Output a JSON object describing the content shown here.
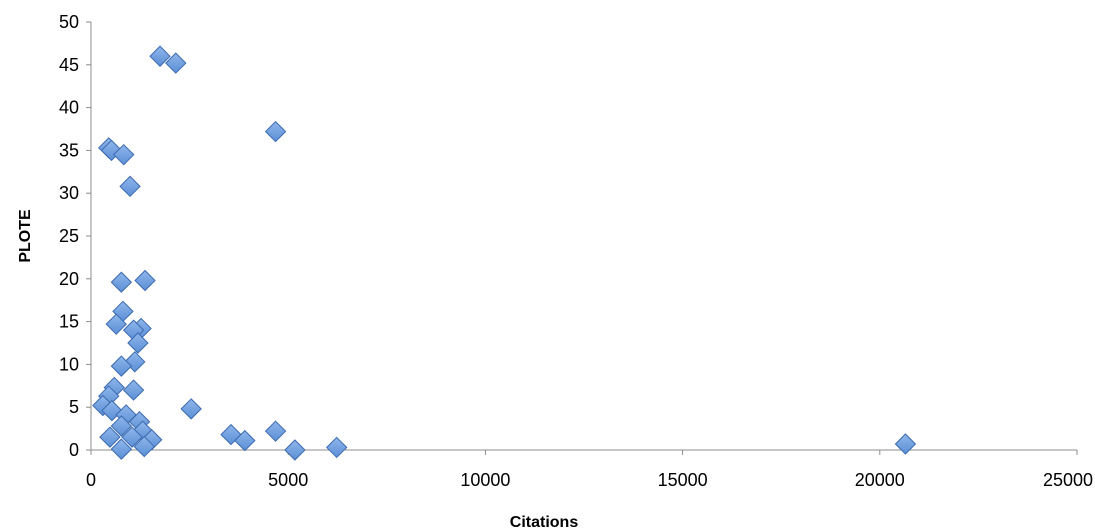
{
  "chart_data": {
    "type": "scatter",
    "title": "",
    "xlabel": "Citations",
    "ylabel": "PLOTE",
    "xlim": [
      0,
      25000
    ],
    "ylim": [
      0,
      50
    ],
    "xticks": [
      0,
      5000,
      10000,
      15000,
      20000,
      25000
    ],
    "yticks": [
      0,
      5,
      10,
      15,
      20,
      25,
      30,
      35,
      40,
      45,
      50
    ],
    "x_tick_labels": [
      "0",
      "5000",
      "10000",
      "15000",
      "20000",
      "25000"
    ],
    "y_tick_labels": [
      "0",
      "5",
      "10",
      "15",
      "20",
      "25",
      "30",
      "35",
      "40",
      "45",
      "50"
    ],
    "grid": false,
    "legend": "none",
    "marker": "diamond",
    "colors": {
      "marker_fill": "#5b8fd6",
      "marker_fill_light": "#8fb6ea",
      "marker_stroke": "#3c6ab0",
      "axis": "#8c8c8c"
    },
    "series": [
      {
        "points": [
          {
            "x": 1750,
            "y": 46.0
          },
          {
            "x": 2150,
            "y": 45.2
          },
          {
            "x": 4680,
            "y": 37.2
          },
          {
            "x": 450,
            "y": 35.3
          },
          {
            "x": 520,
            "y": 35.0
          },
          {
            "x": 830,
            "y": 34.5
          },
          {
            "x": 990,
            "y": 30.8
          },
          {
            "x": 770,
            "y": 19.6
          },
          {
            "x": 1370,
            "y": 19.8
          },
          {
            "x": 810,
            "y": 16.2
          },
          {
            "x": 640,
            "y": 14.7
          },
          {
            "x": 1270,
            "y": 14.2
          },
          {
            "x": 1080,
            "y": 14.0
          },
          {
            "x": 1190,
            "y": 12.5
          },
          {
            "x": 1110,
            "y": 10.3
          },
          {
            "x": 770,
            "y": 9.8
          },
          {
            "x": 590,
            "y": 7.3
          },
          {
            "x": 450,
            "y": 6.3
          },
          {
            "x": 1080,
            "y": 7.0
          },
          {
            "x": 300,
            "y": 5.2
          },
          {
            "x": 530,
            "y": 4.6
          },
          {
            "x": 890,
            "y": 4.1
          },
          {
            "x": 2540,
            "y": 4.8
          },
          {
            "x": 1230,
            "y": 3.3
          },
          {
            "x": 770,
            "y": 2.8
          },
          {
            "x": 1310,
            "y": 2.2
          },
          {
            "x": 4680,
            "y": 2.2
          },
          {
            "x": 480,
            "y": 1.5
          },
          {
            "x": 1040,
            "y": 1.5
          },
          {
            "x": 1540,
            "y": 1.2
          },
          {
            "x": 3550,
            "y": 1.8
          },
          {
            "x": 3900,
            "y": 1.1
          },
          {
            "x": 1350,
            "y": 0.4
          },
          {
            "x": 770,
            "y": 0.1
          },
          {
            "x": 5170,
            "y": 0.0
          },
          {
            "x": 6230,
            "y": 0.3
          },
          {
            "x": 20650,
            "y": 0.7
          }
        ]
      }
    ]
  }
}
